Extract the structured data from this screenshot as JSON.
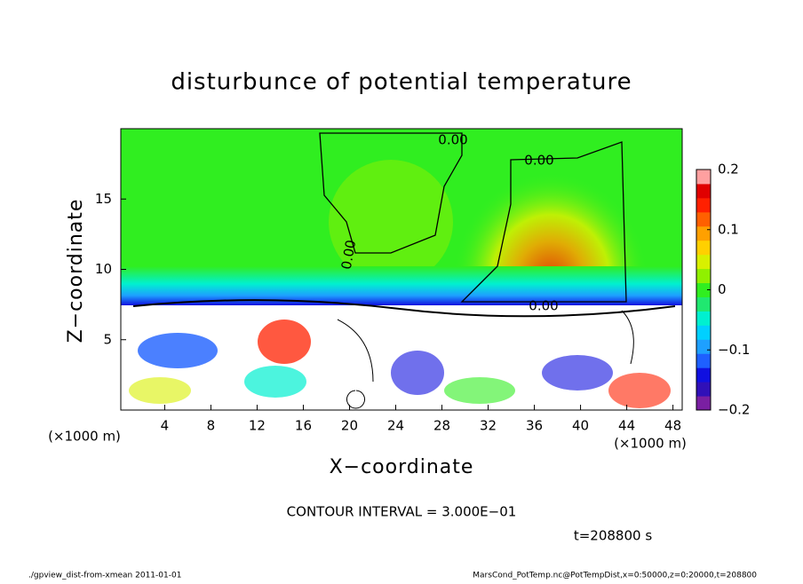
{
  "chart_data": {
    "type": "heatmap",
    "title": "disturbunce of potential temperature",
    "xlabel": "X−coordinate",
    "ylabel": "Z−coordinate",
    "xunit": "(×1000 m)",
    "xlim": [
      0.2,
      48.8
    ],
    "xticks": [
      4,
      8,
      12,
      16,
      20,
      24,
      28,
      32,
      36,
      40,
      44,
      48
    ],
    "ylim": [
      0,
      20
    ],
    "yticks": [
      5,
      10,
      15
    ],
    "clim": [
      -0.2,
      0.2
    ],
    "cticks": [
      {
        "value": -0.2,
        "label": "−0.2"
      },
      {
        "value": -0.1,
        "label": "−0.1"
      },
      0,
      0.1,
      0.2
    ],
    "colors": [
      "#7a1fa2",
      "#3010b8",
      "#1010e0",
      "#1e60ff",
      "#1ea0ff",
      "#00d0ff",
      "#00f0d0",
      "#20e870",
      "#30ee20",
      "#90f000",
      "#d8f000",
      "#ffd000",
      "#ffa000",
      "#ff6000",
      "#ff2000",
      "#e00000",
      "#ffa0a0"
    ],
    "contour_labels": [
      "0.00",
      "0.00",
      "0.00",
      "0.00"
    ],
    "contour_interval": "CONTOUR INTERVAL = 3.000E−01",
    "time": "t=208800 s",
    "footer_left": "./gpview_dist-from-xmean   2011-01-01",
    "footer_right": "MarsCond_PotTemp.nc@PotTempDist,x=0:50000,z=0:20000,t=208800"
  }
}
